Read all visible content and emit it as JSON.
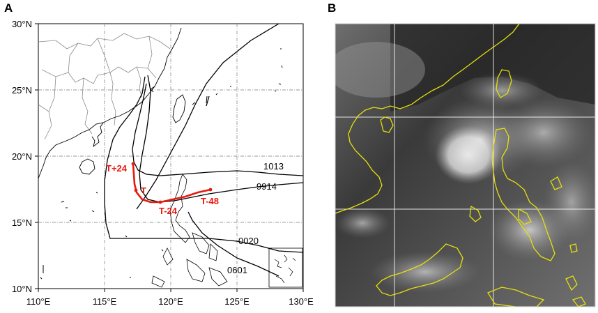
{
  "panels": {
    "a": {
      "letter": "A"
    },
    "b": {
      "letter": "B"
    }
  },
  "map": {
    "lon_ticks": [
      "110°E",
      "115°E",
      "120°E",
      "125°E",
      "130°E"
    ],
    "lat_ticks": [
      "30°N",
      "25°N",
      "20°N",
      "15°N",
      "10°N"
    ],
    "lon_range": [
      110,
      130
    ],
    "lat_range": [
      10,
      30
    ],
    "gridlines": "dash-dot",
    "colors": {
      "track": "#000000",
      "highlight": "#e8190f",
      "coast": "#000000",
      "border": "#888888"
    }
  },
  "tracks": {
    "labels": [
      "1013",
      "9914",
      "0020",
      "0601"
    ]
  },
  "highlight_track": {
    "labels": [
      "T+24",
      "T",
      "T-24",
      "T-48"
    ]
  },
  "satellite": {
    "colors": {
      "coast": "#e6e00c",
      "grid": "#ffffff"
    }
  }
}
